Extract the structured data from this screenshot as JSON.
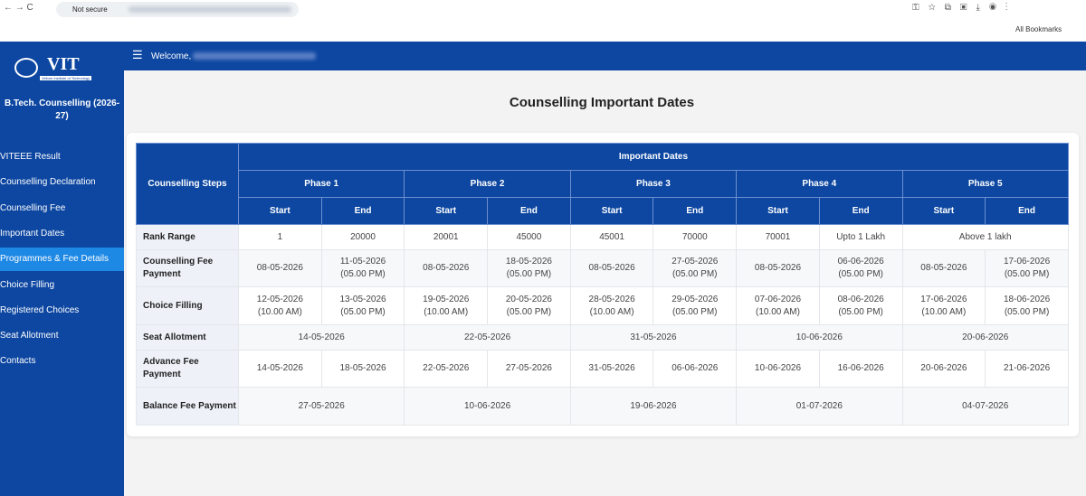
{
  "browser": {
    "security": "Not secure",
    "bookmarks": "All Bookmarks"
  },
  "sidebar": {
    "logo": "VIT",
    "logo_sub": "Vellore Institute of Technology",
    "app_title": "B.Tech. Counselling (2026-27)",
    "menu": [
      "VITEEE Result",
      "Counselling Declaration",
      "Counselling Fee",
      "Important Dates",
      "Programmes & Fee Details",
      "Choice Filling",
      "Registered Choices",
      "Seat Allotment",
      "Contacts"
    ]
  },
  "header": {
    "welcome": "Welcome,"
  },
  "page": {
    "title": "Counselling Important Dates"
  },
  "table": {
    "steps_header": "Counselling Steps",
    "group_header": "Important Dates",
    "phases": [
      "Phase 1",
      "Phase 2",
      "Phase 3",
      "Phase 4",
      "Phase 5"
    ],
    "start": "Start",
    "end": "End",
    "rows": [
      {
        "step": "Rank Range",
        "cells": [
          "1",
          "20000",
          "20001",
          "45000",
          "45001",
          "70000",
          "70001",
          "Upto 1 Lakh",
          "Above 1 lakh"
        ]
      },
      {
        "step": "Counselling Fee Payment",
        "cells": [
          "08-05-2026",
          "11-05-2026\n(05.00 PM)",
          "08-05-2026",
          "18-05-2026\n(05.00 PM)",
          "08-05-2026",
          "27-05-2026\n(05.00 PM)",
          "08-05-2026",
          "06-06-2026\n(05.00 PM)",
          "08-05-2026",
          "17-06-2026\n(05.00 PM)"
        ]
      },
      {
        "step": "Choice Filling",
        "cells": [
          "12-05-2026\n(10.00 AM)",
          "13-05-2026\n(05.00 PM)",
          "19-05-2026\n(10.00 AM)",
          "20-05-2026\n(05.00 PM)",
          "28-05-2026\n(10.00 AM)",
          "29-05-2026\n(05.00 PM)",
          "07-06-2026\n(10.00 AM)",
          "08-06-2026\n(05.00 PM)",
          "17-06-2026\n(10.00 AM)",
          "18-06-2026\n(05.00 PM)"
        ]
      },
      {
        "step": "Seat Allotment",
        "cells": [
          "14-05-2026",
          "22-05-2026",
          "31-05-2026",
          "10-06-2026",
          "20-06-2026"
        ]
      },
      {
        "step": "Advance Fee Payment",
        "cells": [
          "14-05-2026",
          "18-05-2026",
          "22-05-2026",
          "27-05-2026",
          "31-05-2026",
          "06-06-2026",
          "10-06-2026",
          "16-06-2026",
          "20-06-2026",
          "21-06-2026"
        ]
      },
      {
        "step": "Balance Fee Payment",
        "cells": [
          "27-05-2026",
          "10-06-2026",
          "19-06-2026",
          "01-07-2026",
          "04-07-2026"
        ]
      }
    ]
  }
}
